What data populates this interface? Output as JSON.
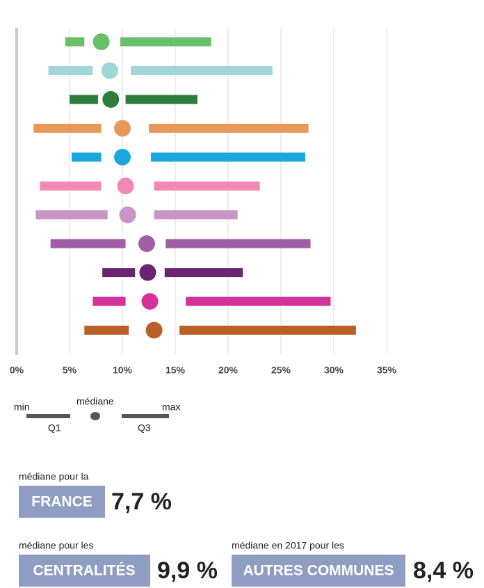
{
  "chart_data": {
    "type": "range",
    "xlim": [
      0,
      35
    ],
    "xticks": [
      {
        "value": 0,
        "label": "0%"
      },
      {
        "value": 5,
        "label": "5%"
      },
      {
        "value": 10,
        "label": "10%"
      },
      {
        "value": 15,
        "label": "15%"
      },
      {
        "value": 20,
        "label": "20%"
      },
      {
        "value": 25,
        "label": "25%"
      },
      {
        "value": 30,
        "label": "30%"
      },
      {
        "value": 35,
        "label": "35%"
      }
    ],
    "grid": true,
    "series": [
      {
        "color": "#6abf69",
        "values": [
          4.6,
          6.4,
          8.0,
          9.8,
          18.4
        ]
      },
      {
        "color": "#9fd6d8",
        "values": [
          3.0,
          7.2,
          8.8,
          10.8,
          24.2
        ]
      },
      {
        "color": "#2e7d3a",
        "values": [
          5.0,
          7.7,
          8.9,
          10.3,
          17.1
        ]
      },
      {
        "color": "#e8995a",
        "values": [
          1.6,
          8.0,
          10.0,
          12.5,
          27.6
        ]
      },
      {
        "color": "#1aa7dc",
        "values": [
          5.2,
          8.0,
          10.0,
          12.7,
          27.3
        ]
      },
      {
        "color": "#f288b4",
        "values": [
          2.2,
          8.0,
          10.3,
          13.0,
          23.0
        ]
      },
      {
        "color": "#c994c6",
        "values": [
          1.8,
          8.6,
          10.5,
          13.0,
          20.9
        ]
      },
      {
        "color": "#a05ea6",
        "values": [
          3.2,
          10.3,
          12.3,
          14.1,
          27.8
        ]
      },
      {
        "color": "#6b2470",
        "values": [
          8.1,
          11.2,
          12.4,
          14.0,
          21.4
        ]
      },
      {
        "color": "#d6329b",
        "values": [
          7.2,
          10.3,
          12.6,
          16.0,
          29.7
        ]
      },
      {
        "color": "#b95f28",
        "values": [
          6.4,
          10.6,
          13.0,
          15.4,
          32.1
        ]
      }
    ]
  },
  "legend": {
    "min": "min",
    "median": "médiane",
    "max": "max",
    "q1": "Q1",
    "q3": "Q3"
  },
  "summary": [
    {
      "caption": "médiane pour la",
      "label": "FRANCE",
      "value": "7,7 %"
    },
    {
      "caption": "médiane pour les",
      "label": "CENTRALITÉS",
      "value": "9,9 %"
    },
    {
      "caption": "médiane en 2017 pour les",
      "label": "AUTRES COMMUNES",
      "value": "8,4 %"
    }
  ]
}
